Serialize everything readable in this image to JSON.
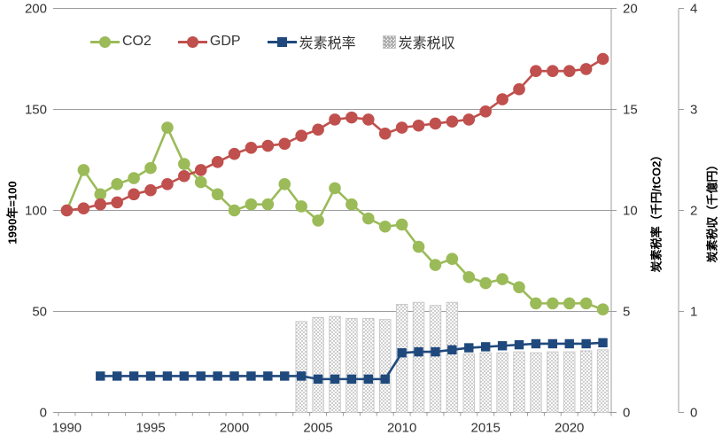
{
  "chart_data": {
    "type": "combo",
    "years": [
      1990,
      1991,
      1992,
      1993,
      1994,
      1995,
      1996,
      1997,
      1998,
      1999,
      2000,
      2001,
      2002,
      2003,
      2004,
      2005,
      2006,
      2007,
      2008,
      2009,
      2010,
      2011,
      2012,
      2013,
      2014,
      2015,
      2016,
      2017,
      2018,
      2019,
      2020,
      2021,
      2022
    ],
    "x_labeled_years": [
      1990,
      1995,
      2000,
      2005,
      2010,
      2015,
      2020
    ],
    "left_axis": {
      "title": "1990年=100",
      "min": 0,
      "max": 200,
      "ticks": [
        0,
        50,
        100,
        150,
        200
      ]
    },
    "right_axis_1": {
      "title": "炭素税率（千円/tCO2）",
      "min": 0,
      "max": 20,
      "ticks": [
        0,
        5,
        10,
        15,
        20
      ]
    },
    "right_axis_2": {
      "title": "炭素税収（千億円）",
      "min": 0,
      "max": 4,
      "ticks": [
        0,
        1,
        2,
        3,
        4
      ]
    },
    "series": [
      {
        "name": "CO2",
        "type": "line",
        "marker": "circle",
        "axis": "left",
        "color": "#9BBB59",
        "values": [
          100,
          120,
          108,
          113,
          116,
          121,
          141,
          123,
          114,
          108,
          100,
          103,
          103,
          113,
          102,
          95,
          111,
          103,
          96,
          92,
          93,
          82,
          73,
          76,
          67,
          64,
          66,
          62,
          54,
          54,
          54,
          54,
          51
        ]
      },
      {
        "name": "GDP",
        "type": "line",
        "marker": "circle",
        "axis": "left",
        "color": "#C0504D",
        "values": [
          100,
          101,
          103,
          104,
          108,
          110,
          113,
          117,
          120,
          124,
          128,
          131,
          132,
          133,
          137,
          140,
          145,
          146,
          145,
          138,
          141,
          142,
          143,
          144,
          145,
          149,
          155,
          160,
          169,
          169,
          169,
          170,
          175
        ]
      },
      {
        "name": "炭素税率",
        "type": "line",
        "marker": "square",
        "axis": "right1",
        "color": "#1F497D",
        "values": [
          null,
          null,
          1.8,
          1.8,
          1.8,
          1.8,
          1.8,
          1.8,
          1.8,
          1.8,
          1.8,
          1.8,
          1.8,
          1.8,
          1.8,
          1.65,
          1.65,
          1.65,
          1.65,
          1.65,
          2.95,
          3.0,
          3.0,
          3.1,
          3.2,
          3.25,
          3.3,
          3.35,
          3.4,
          3.4,
          3.4,
          3.4,
          3.45
        ]
      },
      {
        "name": "炭素税収",
        "type": "bar",
        "axis": "right2",
        "color": "#D9D9D9",
        "values": [
          null,
          null,
          null,
          null,
          null,
          null,
          null,
          null,
          null,
          null,
          null,
          null,
          null,
          null,
          0.9,
          0.94,
          0.95,
          0.93,
          0.93,
          0.92,
          1.07,
          1.09,
          1.06,
          1.09,
          0.58,
          0.59,
          0.59,
          0.6,
          0.59,
          0.6,
          0.6,
          0.61,
          0.62
        ]
      }
    ],
    "style": {
      "grid_color": "#9d9d9d",
      "tick_text_color": "#333333",
      "bar_dot_color": "#ababab",
      "bar_border_color": "#c9c9c9"
    },
    "legend_position": "top-inside",
    "grid": true
  }
}
